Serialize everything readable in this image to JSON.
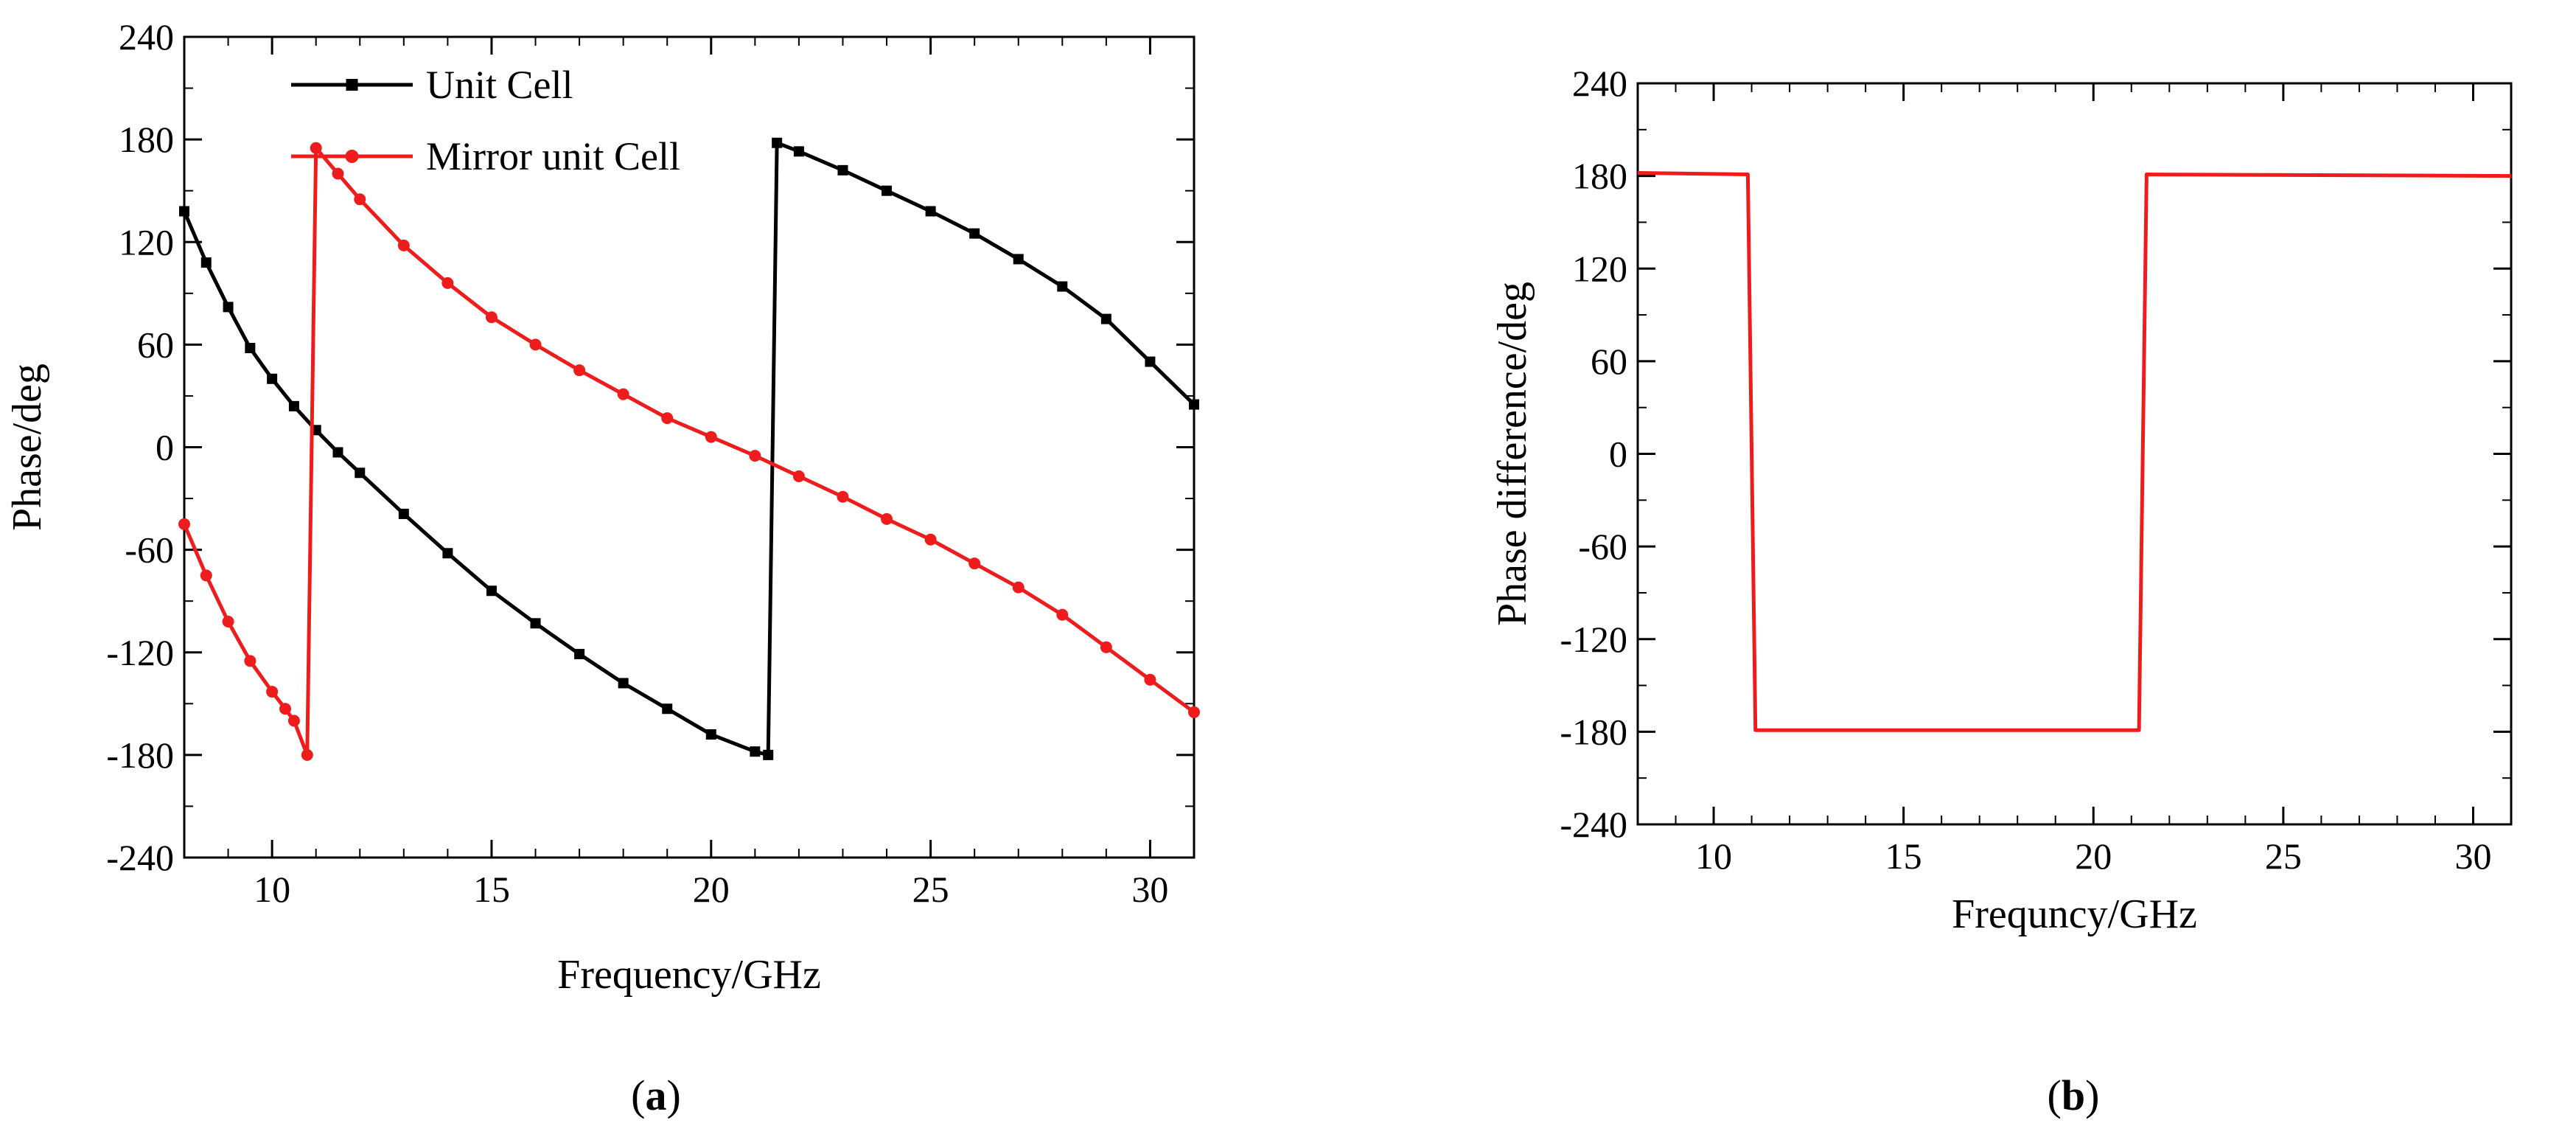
{
  "chart_data": [
    {
      "type": "line",
      "xlabel": "Frequency/GHz",
      "ylabel": "Phase/deg",
      "xlim": [
        8,
        31
      ],
      "ylim": [
        -240,
        240
      ],
      "xticks": [
        10,
        15,
        20,
        25,
        30
      ],
      "yticks": [
        -240,
        -180,
        -120,
        -60,
        0,
        60,
        120,
        180,
        240
      ],
      "grid": false,
      "legend_position": "top-left",
      "panel_label": "a",
      "series": [
        {
          "name": "Unit  Cell",
          "color": "#000000",
          "marker": "square",
          "x": [
            8.0,
            8.5,
            9.0,
            9.5,
            10.0,
            10.5,
            11.0,
            11.5,
            12.0,
            13.0,
            14.0,
            15.0,
            16.0,
            17.0,
            18.0,
            19.0,
            20.0,
            21.0,
            21.3,
            21.5,
            22.0,
            23.0,
            24.0,
            25.0,
            26.0,
            27.0,
            28.0,
            29.0,
            30.0,
            31.0
          ],
          "y": [
            138,
            108,
            82,
            58,
            40,
            24,
            10,
            -3,
            -15,
            -39,
            -62,
            -84,
            -103,
            -121,
            -138,
            -153,
            -168,
            -178,
            -180,
            178,
            173,
            162,
            150,
            138,
            125,
            110,
            94,
            75,
            50,
            25
          ]
        },
        {
          "name": "Mirror unit Cell",
          "color": "#ee1c1c",
          "marker": "circle",
          "x": [
            8.0,
            8.5,
            9.0,
            9.5,
            10.0,
            10.3,
            10.5,
            10.8,
            11.0,
            11.5,
            12.0,
            13.0,
            14.0,
            15.0,
            16.0,
            17.0,
            18.0,
            19.0,
            20.0,
            21.0,
            22.0,
            23.0,
            24.0,
            25.0,
            26.0,
            27.0,
            28.0,
            29.0,
            30.0,
            31.0
          ],
          "y": [
            -45,
            -75,
            -102,
            -125,
            -143,
            -153,
            -160,
            -180,
            175,
            160,
            145,
            118,
            96,
            76,
            60,
            45,
            31,
            17,
            6,
            -5,
            -17,
            -29,
            -42,
            -54,
            -68,
            -82,
            -98,
            -117,
            -136,
            -155
          ]
        }
      ]
    },
    {
      "type": "line",
      "xlabel": "Frequncy/GHz",
      "ylabel": "Phase difference/deg",
      "xlim": [
        8,
        31
      ],
      "ylim": [
        -240,
        240
      ],
      "xticks": [
        10,
        15,
        20,
        25,
        30
      ],
      "yticks": [
        -240,
        -180,
        -120,
        -60,
        0,
        60,
        120,
        180,
        240
      ],
      "grid": false,
      "panel_label": "b",
      "series": [
        {
          "color": "#ee1c1c",
          "marker": "none",
          "x": [
            8.0,
            10.9,
            11.1,
            21.2,
            21.4,
            31.0
          ],
          "y": [
            182,
            181,
            -179,
            -179,
            181,
            180
          ]
        }
      ]
    }
  ]
}
